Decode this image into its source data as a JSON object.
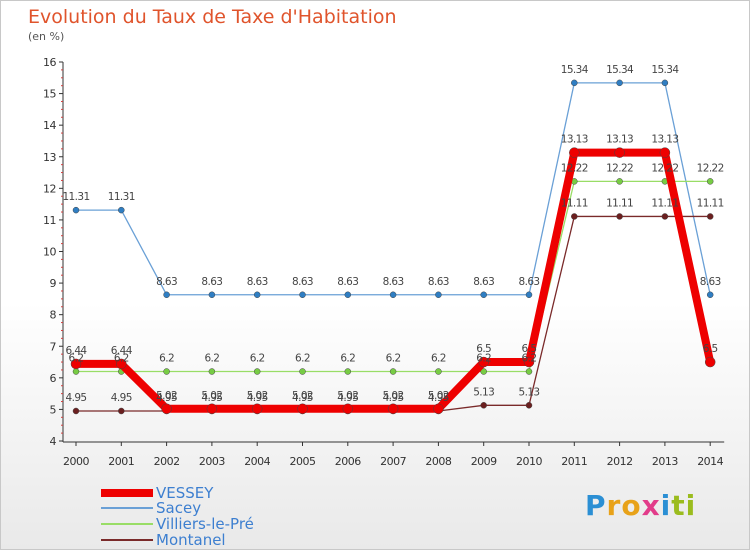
{
  "title": "Evolution du Taux de Taxe d'Habitation",
  "unit_label": "(en %)",
  "logo": {
    "text": "Proxiti",
    "letters": [
      "P",
      "r",
      "o",
      "x",
      "i",
      "t",
      "i"
    ],
    "colors": [
      "#2b8fd4",
      "#e8a219",
      "#e8a219",
      "#e23c8a",
      "#2b8fd4",
      "#9bbc1e",
      "#9bbc1e"
    ]
  },
  "chart_data": {
    "type": "line",
    "x": [
      "2000",
      "2001",
      "2002",
      "2003",
      "2004",
      "2005",
      "2006",
      "2007",
      "2008",
      "2009",
      "2010",
      "2011",
      "2012",
      "2013",
      "2014"
    ],
    "ylim": [
      4,
      16
    ],
    "yticks": [
      "4",
      "5",
      "6",
      "7",
      "8",
      "9",
      "10",
      "11",
      "12",
      "13",
      "14",
      "15",
      "16"
    ],
    "grid": false,
    "legend_placement": "bottom-left",
    "series": [
      {
        "name": "VESSEY",
        "color": "#ee0000",
        "width": 8,
        "marker_r": 5,
        "values": [
          6.44,
          6.44,
          5.02,
          5.02,
          5.02,
          5.02,
          5.02,
          5.02,
          5.02,
          6.5,
          6.5,
          13.13,
          13.13,
          13.13,
          6.5
        ],
        "labels": [
          "6.44",
          "6.44",
          "5.02",
          "5.02",
          "5.02",
          "5.02",
          "5.02",
          "5.02",
          "5.02",
          "6.5",
          "6.5",
          "13.13",
          "13.13",
          "13.13",
          "6.5"
        ]
      },
      {
        "name": "Sacey",
        "color": "#6aa0d6",
        "marker_color": "#2f7ec3",
        "width": 1.3,
        "marker_r": 3,
        "values": [
          11.31,
          11.31,
          8.63,
          8.63,
          8.63,
          8.63,
          8.63,
          8.63,
          8.63,
          8.63,
          8.63,
          15.34,
          15.34,
          15.34,
          8.63
        ],
        "labels": [
          "11.31",
          "11.31",
          "8.63",
          "8.63",
          "8.63",
          "8.63",
          "8.63",
          "8.63",
          "8.63",
          "8.63",
          "8.63",
          "15.34",
          "15.34",
          "15.34",
          "8.63"
        ]
      },
      {
        "name": "Villiers-le-Pré",
        "color": "#99dd66",
        "marker_color": "#77cc44",
        "width": 1.3,
        "marker_r": 3,
        "values": [
          6.2,
          6.2,
          6.2,
          6.2,
          6.2,
          6.2,
          6.2,
          6.2,
          6.2,
          6.2,
          6.2,
          12.22,
          12.22,
          12.22,
          12.22
        ],
        "labels": [
          "6.2",
          "6.2",
          "6.2",
          "6.2",
          "6.2",
          "6.2",
          "6.2",
          "6.2",
          "6.2",
          "6.2",
          "6.2",
          "12.22",
          "12.22",
          "12.22",
          "12.22"
        ]
      },
      {
        "name": "Montanel",
        "color": "#7a2a2a",
        "marker_color": "#6b1f1f",
        "width": 1.3,
        "marker_r": 3,
        "values": [
          4.95,
          4.95,
          4.95,
          4.95,
          4.95,
          4.95,
          4.95,
          4.95,
          4.95,
          5.13,
          5.13,
          11.11,
          11.11,
          11.11,
          11.11
        ],
        "labels": [
          "4.95",
          "4.95",
          "4.95",
          "4.95",
          "4.95",
          "4.95",
          "4.95",
          "4.95",
          "4.95",
          "5.13",
          "5.13",
          "11.11",
          "11.11",
          "11.11",
          "11.11"
        ]
      }
    ]
  }
}
